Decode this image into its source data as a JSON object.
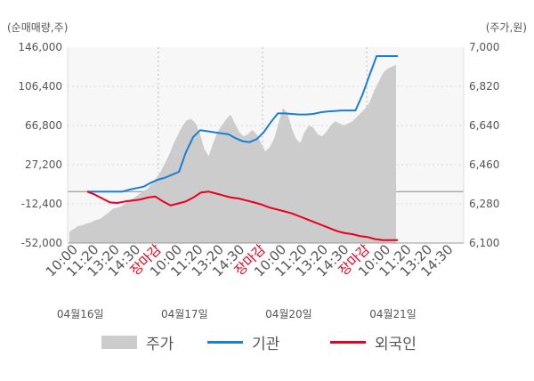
{
  "chart_data": {
    "type": "line",
    "left_axis_unit": "(순매매량,주)",
    "right_axis_unit": "(주가,원)",
    "left_ticks": [
      "146,000",
      "106,400",
      "66,800",
      "27,200",
      "-12,400",
      "-52,000"
    ],
    "left_ylim": [
      -52000,
      146000
    ],
    "right_ticks": [
      "7,000",
      "6,820",
      "6,640",
      "6,460",
      "6,280",
      "6,100"
    ],
    "right_ylim": [
      6100,
      7000
    ],
    "x_ticks": [
      {
        "text": "10:00",
        "color": "#555555"
      },
      {
        "text": "11:20",
        "color": "#555555"
      },
      {
        "text": "13:20",
        "color": "#555555"
      },
      {
        "text": "14:30",
        "color": "#555555"
      },
      {
        "text": "장마감",
        "color": "#e8001c"
      },
      {
        "text": "10:00",
        "color": "#555555"
      },
      {
        "text": "11:20",
        "color": "#555555"
      },
      {
        "text": "13:20",
        "color": "#555555"
      },
      {
        "text": "14:30",
        "color": "#555555"
      },
      {
        "text": "장마감",
        "color": "#e8001c"
      },
      {
        "text": "10:00",
        "color": "#555555"
      },
      {
        "text": "11:20",
        "color": "#555555"
      },
      {
        "text": "13:20",
        "color": "#555555"
      },
      {
        "text": "14:30",
        "color": "#555555"
      },
      {
        "text": "장마감",
        "color": "#e8001c"
      },
      {
        "text": "10:00",
        "color": "#555555"
      },
      {
        "text": "11:20",
        "color": "#555555"
      },
      {
        "text": "13:20",
        "color": "#555555"
      },
      {
        "text": "14:30",
        "color": "#555555"
      }
    ],
    "date_labels": [
      "04월16일",
      "04월17일",
      "04월20일",
      "04월21일"
    ],
    "zero_line_value": 0,
    "series": [
      {
        "name": "주가",
        "kind": "area",
        "axis": "right",
        "color": "#cccccc",
        "values": [
          6152,
          6165,
          6178,
          6182,
          6190,
          6195,
          6205,
          6210,
          6225,
          6240,
          6258,
          6262,
          6270,
          6285,
          6300,
          6310,
          6325,
          6338,
          6350,
          6378,
          6400,
          6430,
          6470,
          6510,
          6560,
          6600,
          6640,
          6665,
          6670,
          6650,
          6600,
          6530,
          6500,
          6560,
          6610,
          6640,
          6670,
          6690,
          6650,
          6610,
          6590,
          6600,
          6620,
          6600,
          6560,
          6520,
          6540,
          6580,
          6650,
          6720,
          6700,
          6630,
          6580,
          6560,
          6610,
          6640,
          6630,
          6600,
          6590,
          6610,
          6640,
          6660,
          6650,
          6640,
          6650,
          6660,
          6680,
          6700,
          6720,
          6750,
          6800,
          6840,
          6880,
          6900,
          6910,
          6920
        ]
      },
      {
        "name": "기관",
        "kind": "line",
        "axis": "left",
        "color": "#1a7fd4",
        "values": [
          0,
          0,
          0,
          0,
          0,
          0,
          2000,
          3500,
          5000,
          9000,
          12000,
          14000,
          17000,
          20000,
          40000,
          55000,
          62000,
          61000,
          60000,
          59000,
          58000,
          54000,
          51000,
          50000,
          53000,
          60000,
          70000,
          79000,
          79000,
          78500,
          78000,
          78000,
          78500,
          80000,
          81000,
          81500,
          82000,
          82000,
          82000,
          98000,
          118000,
          137000,
          137000,
          137000,
          137000
        ]
      },
      {
        "name": "외국인",
        "kind": "line",
        "axis": "left",
        "color": "#e8001c",
        "values": [
          0,
          -3000,
          -7000,
          -11000,
          -11500,
          -10000,
          -9000,
          -8000,
          -6000,
          -5000,
          -10000,
          -14000,
          -12000,
          -10000,
          -6000,
          -1000,
          0,
          -2000,
          -4000,
          -6000,
          -7000,
          -9000,
          -11000,
          -13000,
          -16000,
          -18000,
          -20000,
          -22000,
          -25000,
          -28000,
          -31000,
          -34000,
          -37000,
          -40000,
          -42000,
          -43000,
          -45000,
          -46000,
          -48000,
          -49000,
          -49000,
          -49000
        ]
      }
    ],
    "legend": [
      {
        "label": "주가",
        "color": "#cccccc",
        "kind": "area"
      },
      {
        "label": "기관",
        "color": "#1a7fd4",
        "kind": "line"
      },
      {
        "label": "외국인",
        "color": "#e8001c",
        "kind": "line"
      }
    ]
  }
}
